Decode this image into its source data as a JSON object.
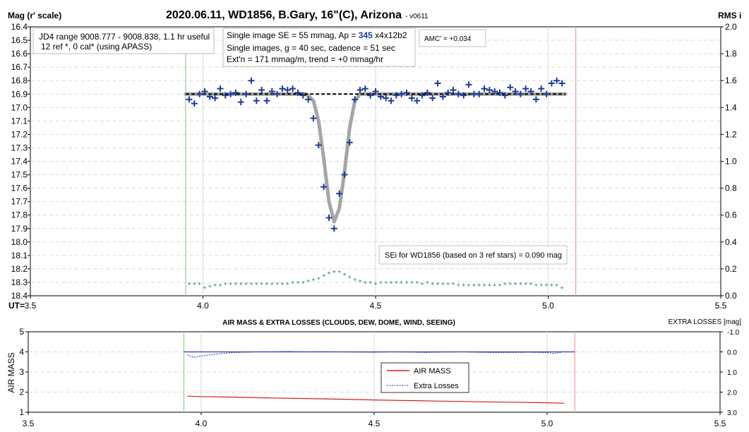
{
  "top": {
    "title": "2020.06.11, WD1856, B.Gary, 16\"(C), Arizona",
    "version": "- v0611",
    "y_left_label": "Mag (r' scale)",
    "y_right_label": "RMS i",
    "x_label": "UT=",
    "info_box_1": {
      "line1": "JD4 range 9008.777 - 9008.838, 1.1 hr useful",
      "line2": "12 ref *, 0 cal* (using APASS)"
    },
    "info_box_2": {
      "line1_pre": "Single image SE = 55 mmag, Ap = ",
      "line1_ap": "345",
      "line1_post": " x4x12b2",
      "line2": "Single images, g = 40 sec, cadence = 51 sec",
      "line3": "Ext'n = 171 mmag/m, trend = +0 mmag/hr"
    },
    "amc_box": "AMC' = +0.034",
    "sei_box": "SEi for WD1856 (based on 3 ref stars) = 0.090 mag"
  },
  "bottom": {
    "title": "AIR MASS & EXTRA LOSSES (CLOUDS, DEW, DOME, WIND, SEEING)",
    "y_left_label": "AIR MASS",
    "y_right_label": "EXTRA LOSSES [mag]",
    "legend_airmass": "AIR MASS",
    "legend_extra": "Extra Losses"
  },
  "colors": {
    "points": "#1f3c96",
    "model": "#a6a6a6",
    "rms": "#3c9a96",
    "airmass": "#d21e1e",
    "extra_losses": "#283cb4",
    "start_line": "#8fd08f",
    "end_line": "#f09a9a"
  },
  "chart_data": [
    {
      "type": "scatter",
      "panel": "light-curve",
      "x_ticks": [
        "3.5",
        "4.0",
        "4.5",
        "5.0",
        "5.5"
      ],
      "y_ticks": [
        "16.4",
        "16.5",
        "16.6",
        "16.7",
        "16.8",
        "16.9",
        "17.0",
        "17.1",
        "17.2",
        "17.3",
        "17.4",
        "17.5",
        "17.6",
        "17.7",
        "17.8",
        "17.9",
        "18.0",
        "18.1",
        "18.2",
        "18.3",
        "18.4"
      ],
      "y_right_ticks": [
        "2.0",
        "1.8",
        "1.6",
        "1.4",
        "1.2",
        "1.0",
        "0.8",
        "0.6",
        "0.4",
        "0.2",
        "0.0"
      ],
      "xlim": [
        3.5,
        5.5
      ],
      "ylim": [
        16.4,
        18.4
      ],
      "y_inverted": true,
      "y_right_lim": [
        0,
        2
      ],
      "ingress_ut": 3.95,
      "egress_ut": 5.08,
      "oot_level": 16.9,
      "oot_level_line_x": [
        3.95,
        5.05
      ],
      "series": [
        {
          "kind": "mag",
          "x": [
            3.96,
            3.975,
            3.99,
            4.005,
            4.02,
            4.035,
            4.05,
            4.065,
            4.08,
            4.095,
            4.11,
            4.125,
            4.14,
            4.155,
            4.17,
            4.185,
            4.2,
            4.215,
            4.23,
            4.245,
            4.26,
            4.275,
            4.29,
            4.305,
            4.32,
            4.335,
            4.35,
            4.365,
            4.38,
            4.395,
            4.41,
            4.425,
            4.44,
            4.455,
            4.47,
            4.485,
            4.5,
            4.515,
            4.53,
            4.545,
            4.56,
            4.575,
            4.59,
            4.605,
            4.62,
            4.635,
            4.65,
            4.665,
            4.68,
            4.695,
            4.71,
            4.725,
            4.74,
            4.755,
            4.77,
            4.785,
            4.8,
            4.815,
            4.83,
            4.845,
            4.86,
            4.875,
            4.89,
            4.905,
            4.92,
            4.935,
            4.95,
            4.965,
            4.98,
            4.995,
            5.01,
            5.025,
            5.04
          ],
          "values": [
            16.94,
            16.97,
            16.9,
            16.88,
            16.92,
            16.93,
            16.86,
            16.91,
            16.9,
            16.89,
            16.96,
            16.9,
            16.8,
            16.95,
            16.87,
            16.95,
            16.88,
            16.9,
            16.86,
            16.87,
            16.86,
            16.89,
            16.91,
            16.94,
            17.08,
            17.28,
            17.59,
            17.82,
            17.9,
            17.64,
            17.5,
            17.26,
            16.94,
            16.87,
            16.86,
            16.91,
            16.88,
            16.92,
            16.93,
            16.95,
            16.91,
            16.9,
            16.89,
            16.93,
            16.95,
            16.91,
            16.89,
            16.93,
            16.82,
            16.92,
            16.89,
            16.87,
            16.9,
            16.91,
            16.83,
            16.9,
            16.9,
            16.86,
            16.87,
            16.88,
            16.89,
            16.91,
            16.85,
            16.88,
            16.9,
            16.86,
            16.88,
            16.94,
            16.86,
            16.9,
            16.82,
            16.8,
            16.82
          ]
        },
        {
          "kind": "model",
          "x": [
            3.95,
            4.3,
            4.32,
            4.335,
            4.35,
            4.365,
            4.38,
            4.395,
            4.41,
            4.425,
            4.44,
            4.455,
            5.05
          ],
          "values": [
            16.9,
            16.9,
            16.95,
            17.1,
            17.38,
            17.7,
            17.85,
            17.75,
            17.48,
            17.15,
            16.95,
            16.9,
            16.9
          ]
        },
        {
          "kind": "rms",
          "x": [
            3.96,
            3.975,
            3.99,
            4.005,
            4.02,
            4.035,
            4.05,
            4.065,
            4.08,
            4.095,
            4.11,
            4.125,
            4.14,
            4.155,
            4.17,
            4.185,
            4.2,
            4.215,
            4.23,
            4.245,
            4.26,
            4.275,
            4.29,
            4.305,
            4.32,
            4.335,
            4.35,
            4.365,
            4.38,
            4.395,
            4.41,
            4.425,
            4.44,
            4.455,
            4.47,
            4.485,
            4.5,
            4.515,
            4.53,
            4.545,
            4.56,
            4.575,
            4.59,
            4.605,
            4.62,
            4.635,
            4.65,
            4.665,
            4.68,
            4.695,
            4.71,
            4.725,
            4.74,
            4.755,
            4.77,
            4.785,
            4.8,
            4.815,
            4.83,
            4.845,
            4.86,
            4.875,
            4.89,
            4.905,
            4.92,
            4.935,
            4.95,
            4.965,
            4.98,
            4.995,
            5.01,
            5.025,
            5.04
          ],
          "values": [
            0.09,
            0.09,
            0.09,
            0.06,
            0.07,
            0.08,
            0.08,
            0.09,
            0.09,
            0.09,
            0.09,
            0.09,
            0.09,
            0.09,
            0.09,
            0.09,
            0.09,
            0.09,
            0.09,
            0.09,
            0.1,
            0.1,
            0.1,
            0.11,
            0.12,
            0.13,
            0.15,
            0.17,
            0.18,
            0.18,
            0.16,
            0.14,
            0.12,
            0.11,
            0.1,
            0.1,
            0.09,
            0.1,
            0.1,
            0.1,
            0.1,
            0.1,
            0.1,
            0.1,
            0.1,
            0.09,
            0.1,
            0.09,
            0.09,
            0.09,
            0.09,
            0.09,
            0.08,
            0.08,
            0.08,
            0.08,
            0.08,
            0.08,
            0.08,
            0.08,
            0.08,
            0.09,
            0.09,
            0.09,
            0.09,
            0.09,
            0.09,
            0.08,
            0.08,
            0.08,
            0.08,
            0.08,
            0.06
          ]
        }
      ]
    },
    {
      "type": "line",
      "panel": "air-mass",
      "x_ticks": [
        "3.5",
        "4.0",
        "4.5",
        "5.0",
        "5.5"
      ],
      "y_ticks": [
        "1",
        "2",
        "3",
        "4",
        "5"
      ],
      "y_right_ticks": [
        "-1.0",
        "0.0",
        "1.0",
        "2.0",
        "3.0"
      ],
      "xlim": [
        3.5,
        5.5
      ],
      "ylim": [
        1,
        5
      ],
      "y_right_lim": [
        -1,
        3
      ],
      "y_right_inverted": true,
      "ingress_ut": 3.95,
      "egress_ut": 5.08,
      "series": [
        {
          "kind": "airmass",
          "x": [
            3.96,
            4.0,
            4.1,
            4.2,
            4.3,
            4.4,
            4.5,
            4.6,
            4.7,
            4.8,
            4.9,
            5.0,
            5.05
          ],
          "values": [
            1.8,
            1.78,
            1.75,
            1.71,
            1.68,
            1.65,
            1.61,
            1.58,
            1.55,
            1.52,
            1.5,
            1.47,
            1.45
          ]
        },
        {
          "kind": "extra",
          "x": [
            3.96,
            3.98,
            4.0,
            4.02,
            4.04,
            4.06,
            4.08,
            4.1,
            4.12,
            4.14,
            4.16,
            4.18,
            4.2,
            4.25,
            4.3,
            4.35,
            4.4,
            4.45,
            4.5,
            4.55,
            4.6,
            4.65,
            4.7,
            4.75,
            4.8,
            4.85,
            4.9,
            4.95,
            5.0,
            5.02,
            5.04
          ],
          "values": [
            0.15,
            0.28,
            0.2,
            0.16,
            0.12,
            0.08,
            0.05,
            0.03,
            0.02,
            0.01,
            0.0,
            -0.01,
            0.0,
            -0.02,
            0.0,
            -0.01,
            0.0,
            0.01,
            0.02,
            0.0,
            0.01,
            0.03,
            0.01,
            0.0,
            0.02,
            0.04,
            0.03,
            0.02,
            0.04,
            0.08,
            0.02
          ]
        },
        {
          "kind": "extra-baseline",
          "x": [
            3.95,
            5.08
          ],
          "values": [
            0.0,
            0.0
          ]
        }
      ]
    }
  ]
}
